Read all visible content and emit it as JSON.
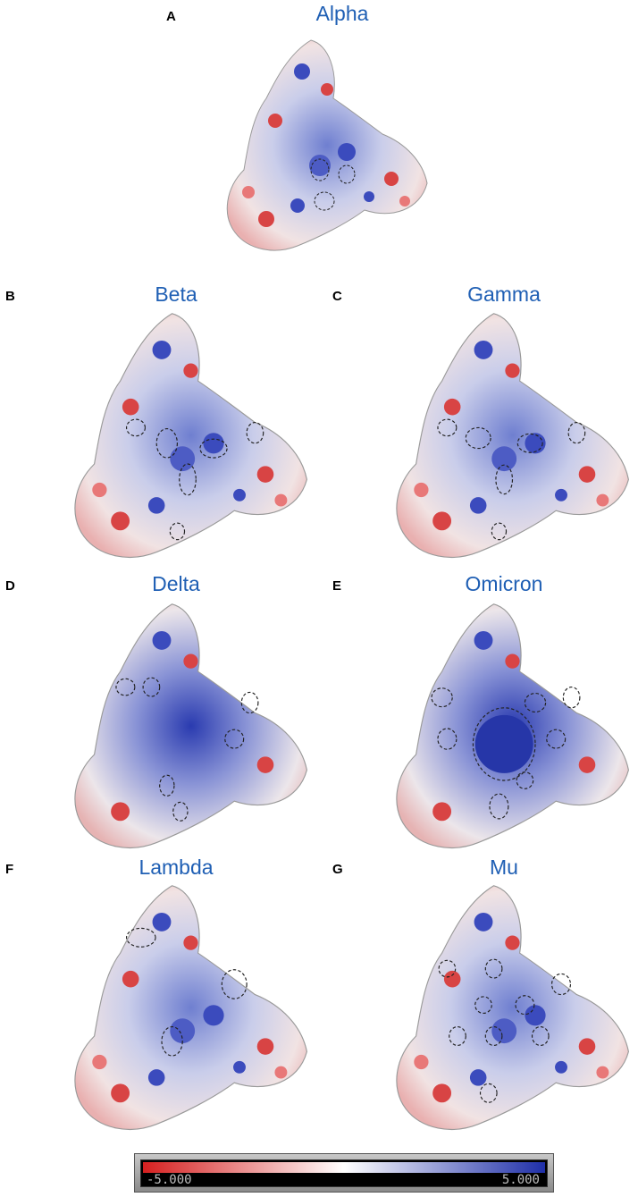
{
  "panels": [
    {
      "letter": "A",
      "title": "Alpha"
    },
    {
      "letter": "B",
      "title": "Beta"
    },
    {
      "letter": "C",
      "title": "Gamma"
    },
    {
      "letter": "D",
      "title": "Delta"
    },
    {
      "letter": "E",
      "title": "Omicron"
    },
    {
      "letter": "F",
      "title": "Lambda"
    },
    {
      "letter": "G",
      "title": "Mu"
    }
  ],
  "colorbar": {
    "min_label": "-5.000",
    "max_label": "5.000",
    "colors": {
      "negative": "#d62020",
      "neutral": "#ffffff",
      "positive": "#1f2fa8"
    }
  },
  "colors": {
    "title": "#1f5fb4"
  }
}
